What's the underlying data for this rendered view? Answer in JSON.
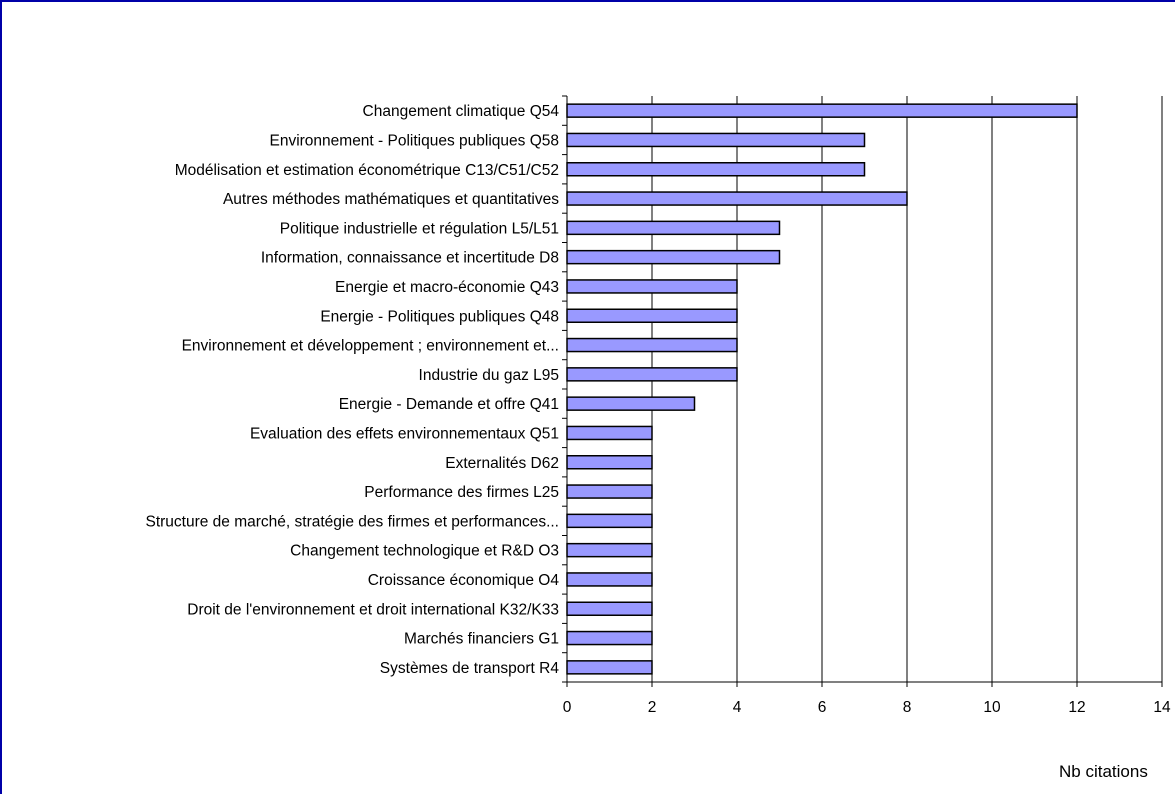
{
  "chart_data": {
    "type": "bar",
    "orientation": "horizontal",
    "categories": [
      "Changement climatique Q54",
      "Environnement - Politiques publiques Q58",
      "Modélisation et estimation économétrique C13/C51/C52",
      "Autres méthodes mathématiques et quantitatives",
      "Politique industrielle et régulation L5/L51",
      "Information, connaissance et incertitude D8",
      "Energie et macro-économie Q43",
      "Energie - Politiques publiques Q48",
      "Environnement et développement ; environnement et...",
      "Industrie du gaz L95",
      "Energie - Demande et offre Q41",
      "Evaluation des effets environnementaux Q51",
      "Externalités D62",
      "Performance des firmes L25",
      "Structure de marché, stratégie des firmes et performances...",
      "Changement technologique et R&D O3",
      "Croissance économique O4",
      "Droit de l'environnement et droit international K32/K33",
      "Marchés financiers G1",
      "Systèmes de transport R4"
    ],
    "values": [
      12,
      7,
      7,
      8,
      5,
      5,
      4,
      4,
      4,
      4,
      3,
      2,
      2,
      2,
      2,
      2,
      2,
      2,
      2,
      2
    ],
    "xlim": [
      0,
      14
    ],
    "xticks": [
      0,
      2,
      4,
      6,
      8,
      10,
      12,
      14
    ],
    "xlabel": "Nb citations",
    "grid": true,
    "colors": {
      "bar_fill": "#9999ff",
      "bar_stroke": "#000000",
      "grid": "#000000",
      "frame": "#0000a8"
    }
  }
}
